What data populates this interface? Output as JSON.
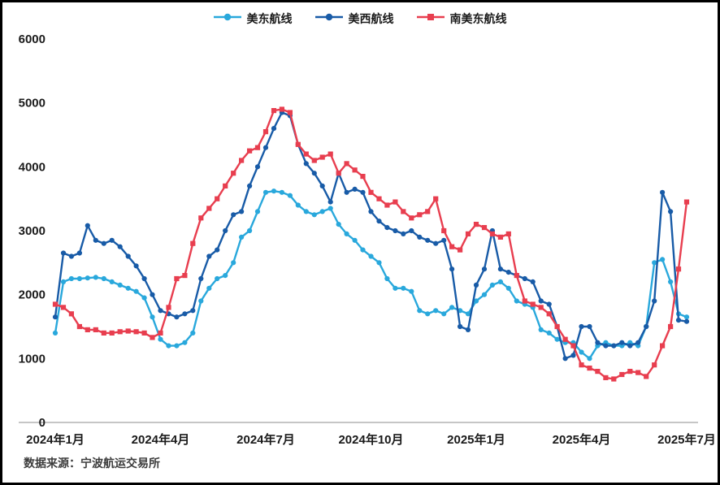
{
  "footer": {
    "source": "数据来源：宁波航运交易所"
  },
  "axis_colors": {
    "axis_line": "#b3b3b3",
    "label": "#1a1a1a"
  },
  "chart_data": {
    "type": "line",
    "title": "",
    "xlabel": "",
    "ylabel": "",
    "grid": false,
    "legend_position": "top-center",
    "ylim": [
      0,
      6000
    ],
    "yticks": [
      0,
      1000,
      2000,
      3000,
      4000,
      5000,
      6000
    ],
    "x_tick_labels": [
      "2024年1月",
      "2024年4月",
      "2024年7月",
      "2024年10月",
      "2025年1月",
      "2025年4月",
      "2025年7月"
    ],
    "x_note": "weekly points, 2024-01 through 2025-07",
    "series": [
      {
        "name": "美东航线",
        "color": "#29a8dc",
        "marker": "circle",
        "values": [
          1400,
          2200,
          2250,
          2250,
          2260,
          2270,
          2250,
          2200,
          2150,
          2100,
          2050,
          1950,
          1650,
          1300,
          1200,
          1200,
          1250,
          1400,
          1900,
          2100,
          2250,
          2300,
          2500,
          2900,
          3000,
          3300,
          3600,
          3620,
          3600,
          3550,
          3400,
          3300,
          3250,
          3300,
          3350,
          3100,
          2950,
          2850,
          2700,
          2600,
          2500,
          2250,
          2100,
          2100,
          2050,
          1750,
          1700,
          1750,
          1700,
          1800,
          1750,
          1700,
          1900,
          2000,
          2150,
          2200,
          2100,
          1900,
          1850,
          1800,
          1450,
          1400,
          1300,
          1250,
          1250,
          1100,
          1000,
          1200,
          1250,
          1200,
          1200,
          1250,
          1200,
          1500,
          2500,
          2550,
          2200,
          1700,
          1650
        ]
      },
      {
        "name": "美西航线",
        "color": "#185ba7",
        "marker": "circle",
        "values": [
          1650,
          2650,
          2600,
          2650,
          3080,
          2850,
          2800,
          2850,
          2750,
          2600,
          2450,
          2250,
          2000,
          1750,
          1700,
          1650,
          1700,
          1750,
          2250,
          2600,
          2700,
          3000,
          3250,
          3300,
          3700,
          4000,
          4300,
          4600,
          4850,
          4800,
          4350,
          4050,
          3900,
          3700,
          3450,
          3900,
          3600,
          3650,
          3600,
          3300,
          3150,
          3050,
          3000,
          2950,
          3000,
          2900,
          2850,
          2800,
          2850,
          2400,
          1500,
          1450,
          2150,
          2400,
          3000,
          2400,
          2350,
          2300,
          2250,
          2200,
          1900,
          1850,
          1500,
          1000,
          1050,
          1500,
          1500,
          1250,
          1200,
          1200,
          1250,
          1200,
          1250,
          1500,
          1900,
          3600,
          3300,
          1600,
          1580
        ]
      },
      {
        "name": "南美东航线",
        "color": "#e83e4f",
        "marker": "square",
        "values": [
          1850,
          1800,
          1700,
          1500,
          1450,
          1450,
          1400,
          1400,
          1420,
          1430,
          1420,
          1400,
          1330,
          1400,
          1800,
          2250,
          2300,
          2800,
          3200,
          3350,
          3500,
          3700,
          3900,
          4100,
          4250,
          4300,
          4550,
          4880,
          4900,
          4850,
          4350,
          4200,
          4100,
          4150,
          4200,
          3900,
          4050,
          3950,
          3850,
          3600,
          3500,
          3400,
          3450,
          3300,
          3200,
          3250,
          3300,
          3500,
          3000,
          2750,
          2700,
          2950,
          3100,
          3050,
          2950,
          2900,
          2950,
          2300,
          1900,
          1850,
          1800,
          1700,
          1500,
          1300,
          1200,
          900,
          850,
          800,
          700,
          680,
          750,
          800,
          780,
          720,
          900,
          1200,
          1500,
          2400,
          3450
        ]
      }
    ],
    "source": "数据来源：宁波航运交易所"
  }
}
